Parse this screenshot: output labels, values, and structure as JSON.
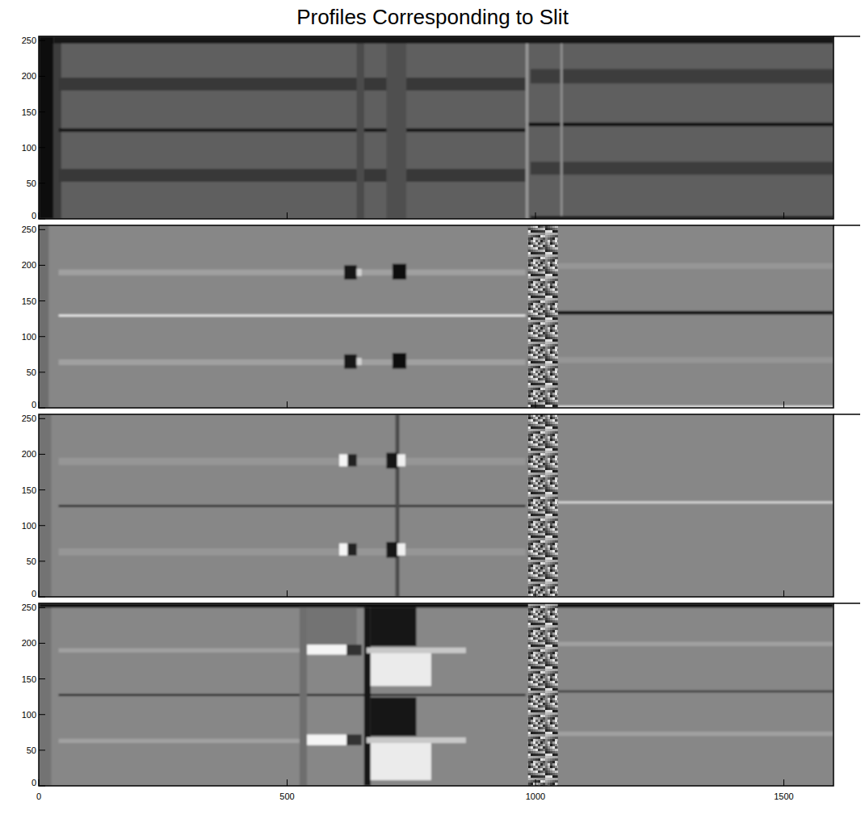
{
  "chart_data": [
    {
      "type": "heatmap",
      "title": "Profiles Corresponding to Slit",
      "xlim": [
        0,
        1600
      ],
      "ylim": [
        0,
        256
      ],
      "xticks": [
        0,
        500,
        1000,
        1500
      ],
      "yticks": [
        0,
        50,
        100,
        150,
        200,
        250
      ],
      "tick_labels": "y",
      "zlim": [
        0,
        255
      ],
      "background": 95,
      "cells": [
        {
          "x": [
            0,
            30
          ],
          "y": [
            0,
            256
          ],
          "value": 15
        },
        {
          "x": [
            30,
            45
          ],
          "y": [
            0,
            256
          ],
          "value": 60
        },
        {
          "x": [
            30,
            1600
          ],
          "y": [
            246,
            256
          ],
          "value": 20
        },
        {
          "x": [
            40,
            980
          ],
          "y": [
            180,
            198
          ],
          "value": 55
        },
        {
          "x": [
            40,
            980
          ],
          "y": [
            52,
            70
          ],
          "value": 55
        },
        {
          "x": [
            40,
            980
          ],
          "y": [
            122,
            127
          ],
          "value": 25
        },
        {
          "x": [
            980,
            1600
          ],
          "y": [
            130,
            135
          ],
          "value": 15
        },
        {
          "x": [
            990,
            1600
          ],
          "y": [
            190,
            210
          ],
          "value": 60
        },
        {
          "x": [
            990,
            1600
          ],
          "y": [
            62,
            80
          ],
          "value": 60
        },
        {
          "x": [
            640,
            655
          ],
          "y": [
            0,
            246
          ],
          "value": 75
        },
        {
          "x": [
            700,
            740
          ],
          "y": [
            0,
            246
          ],
          "value": 80
        },
        {
          "x": [
            980,
            986
          ],
          "y": [
            0,
            246
          ],
          "value": 150
        },
        {
          "x": [
            1050,
            1055
          ],
          "y": [
            0,
            246
          ],
          "value": 140
        },
        {
          "x": [
            990,
            1600
          ],
          "y": [
            0,
            4
          ],
          "value": 30
        }
      ]
    },
    {
      "type": "heatmap",
      "xlim": [
        0,
        1600
      ],
      "ylim": [
        0,
        256
      ],
      "xticks": [
        0,
        500,
        1000,
        1500
      ],
      "yticks": [
        0,
        50,
        100,
        150,
        200,
        250
      ],
      "tick_labels": "y",
      "zlim": [
        0,
        255
      ],
      "background": 135,
      "noise_band": [
        985,
        1045
      ],
      "cells": [
        {
          "x": [
            0,
            20
          ],
          "y": [
            0,
            256
          ],
          "value": 110
        },
        {
          "x": [
            40,
            980
          ],
          "y": [
            128,
            131
          ],
          "value": 230
        },
        {
          "x": [
            1040,
            1600
          ],
          "y": [
            131,
            136
          ],
          "value": 10
        },
        {
          "x": [
            1040,
            1600
          ],
          "y": [
            0,
            3
          ],
          "value": 235
        },
        {
          "x": [
            40,
            980
          ],
          "y": [
            186,
            194
          ],
          "value": 160
        },
        {
          "x": [
            40,
            980
          ],
          "y": [
            60,
            68
          ],
          "value": 160
        },
        {
          "x": [
            1040,
            1600
          ],
          "y": [
            195,
            203
          ],
          "value": 150
        },
        {
          "x": [
            1040,
            1600
          ],
          "y": [
            63,
            71
          ],
          "value": 150
        },
        {
          "x": [
            615,
            640
          ],
          "y": [
            180,
            200
          ],
          "value": 20
        },
        {
          "x": [
            640,
            650
          ],
          "y": [
            185,
            195
          ],
          "value": 210
        },
        {
          "x": [
            712,
            740
          ],
          "y": [
            180,
            202
          ],
          "value": 15
        },
        {
          "x": [
            615,
            640
          ],
          "y": [
            55,
            75
          ],
          "value": 20
        },
        {
          "x": [
            640,
            650
          ],
          "y": [
            60,
            70
          ],
          "value": 210
        },
        {
          "x": [
            712,
            740
          ],
          "y": [
            55,
            77
          ],
          "value": 15
        }
      ]
    },
    {
      "type": "heatmap",
      "xlim": [
        0,
        1600
      ],
      "ylim": [
        0,
        256
      ],
      "xticks": [
        0,
        500,
        1000,
        1500
      ],
      "yticks": [
        0,
        50,
        100,
        150,
        200,
        250
      ],
      "tick_labels": "y",
      "zlim": [
        0,
        255
      ],
      "background": 135,
      "noise_band": [
        985,
        1045
      ],
      "cells": [
        {
          "x": [
            0,
            25
          ],
          "y": [
            0,
            256
          ],
          "value": 115
        },
        {
          "x": [
            40,
            980
          ],
          "y": [
            126,
            129
          ],
          "value": 40
        },
        {
          "x": [
            1040,
            1600
          ],
          "y": [
            131,
            134
          ],
          "value": 215
        },
        {
          "x": [
            40,
            980
          ],
          "y": [
            185,
            195
          ],
          "value": 150
        },
        {
          "x": [
            40,
            980
          ],
          "y": [
            58,
            68
          ],
          "value": 150
        },
        {
          "x": [
            718,
            726
          ],
          "y": [
            0,
            256
          ],
          "value": 75
        },
        {
          "x": [
            605,
            622
          ],
          "y": [
            183,
            200
          ],
          "value": 245
        },
        {
          "x": [
            622,
            640
          ],
          "y": [
            183,
            200
          ],
          "value": 35
        },
        {
          "x": [
            700,
            722
          ],
          "y": [
            180,
            202
          ],
          "value": 20
        },
        {
          "x": [
            722,
            738
          ],
          "y": [
            183,
            200
          ],
          "value": 240
        },
        {
          "x": [
            605,
            622
          ],
          "y": [
            58,
            75
          ],
          "value": 245
        },
        {
          "x": [
            622,
            640
          ],
          "y": [
            58,
            75
          ],
          "value": 35
        },
        {
          "x": [
            700,
            722
          ],
          "y": [
            55,
            77
          ],
          "value": 20
        },
        {
          "x": [
            722,
            738
          ],
          "y": [
            58,
            75
          ],
          "value": 240
        }
      ]
    },
    {
      "type": "heatmap",
      "xlim": [
        0,
        1600
      ],
      "ylim": [
        0,
        256
      ],
      "xticks": [
        0,
        500,
        1000,
        1500
      ],
      "yticks": [
        0,
        50,
        100,
        150,
        200,
        250
      ],
      "zlim": [
        0,
        255
      ],
      "background": 135,
      "noise_band": [
        985,
        1045
      ],
      "cells": [
        {
          "x": [
            0,
            25
          ],
          "y": [
            0,
            256
          ],
          "value": 115
        },
        {
          "x": [
            0,
            1600
          ],
          "y": [
            250,
            256
          ],
          "value": 10
        },
        {
          "x": [
            40,
            980
          ],
          "y": [
            126,
            129
          ],
          "value": 40
        },
        {
          "x": [
            1040,
            1600
          ],
          "y": [
            131,
            134
          ],
          "value": 60
        },
        {
          "x": [
            40,
            530
          ],
          "y": [
            187,
            193
          ],
          "value": 160
        },
        {
          "x": [
            40,
            530
          ],
          "y": [
            60,
            66
          ],
          "value": 160
        },
        {
          "x": [
            525,
            540
          ],
          "y": [
            0,
            250
          ],
          "value": 110
        },
        {
          "x": [
            540,
            640
          ],
          "y": [
            198,
            250
          ],
          "value": 115
        },
        {
          "x": [
            540,
            620
          ],
          "y": [
            184,
            198
          ],
          "value": 245
        },
        {
          "x": [
            620,
            650
          ],
          "y": [
            183,
            198
          ],
          "value": 50
        },
        {
          "x": [
            655,
            668
          ],
          "y": [
            0,
            250
          ],
          "value": 25
        },
        {
          "x": [
            668,
            760
          ],
          "y": [
            196,
            250
          ],
          "value": 20
        },
        {
          "x": [
            668,
            790
          ],
          "y": [
            140,
            192
          ],
          "value": 235
        },
        {
          "x": [
            660,
            860
          ],
          "y": [
            186,
            194
          ],
          "value": 200
        },
        {
          "x": [
            540,
            620
          ],
          "y": [
            57,
            72
          ],
          "value": 245
        },
        {
          "x": [
            620,
            650
          ],
          "y": [
            57,
            72
          ],
          "value": 50
        },
        {
          "x": [
            668,
            760
          ],
          "y": [
            70,
            124
          ],
          "value": 20
        },
        {
          "x": [
            668,
            790
          ],
          "y": [
            8,
            62
          ],
          "value": 235
        },
        {
          "x": [
            660,
            860
          ],
          "y": [
            60,
            68
          ],
          "value": 200
        },
        {
          "x": [
            1040,
            1600
          ],
          "y": [
            196,
            202
          ],
          "value": 160
        },
        {
          "x": [
            1040,
            1600
          ],
          "y": [
            70,
            76
          ],
          "value": 160
        }
      ]
    }
  ]
}
